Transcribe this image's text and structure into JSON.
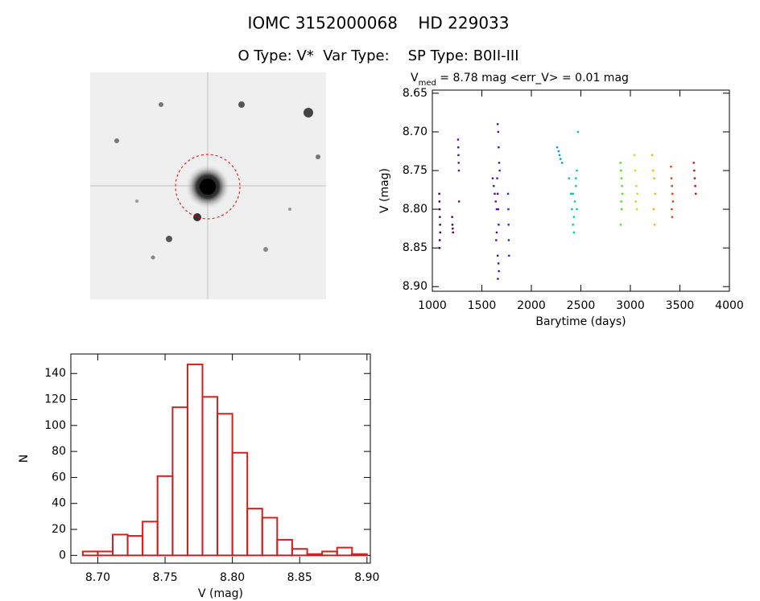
{
  "header": {
    "title": "IOMC 3152000068    HD 229033",
    "subtitle": "O Type: V*  Var Type:    SP Type: B0II-III"
  },
  "chart_data": [
    {
      "type": "scatter",
      "title_main": "V",
      "title_sub": "med",
      "title_rest": " = 8.78 mag <err_V> = 0.01 mag",
      "x_label": "Barytime (days)",
      "y_label": "V (mag)",
      "xlim": [
        1000,
        4000
      ],
      "xticks": [
        1000,
        1500,
        2000,
        2500,
        3000,
        3500,
        4000
      ],
      "ylim": [
        8.646,
        8.906
      ],
      "y_inverted": true,
      "yticks": [
        {
          "value": 8.65,
          "label": "8.65"
        },
        {
          "value": 8.7,
          "label": "8.70"
        },
        {
          "value": 8.75,
          "label": "8.75"
        },
        {
          "value": 8.8,
          "label": "8.80"
        },
        {
          "value": 8.85,
          "label": "8.85"
        },
        {
          "value": 8.9,
          "label": "8.90"
        }
      ],
      "series": [
        {
          "color": "#3a0050",
          "x": [
            1070,
            1072,
            1074,
            1076,
            1078,
            1080,
            1075,
            1073
          ],
          "values": [
            8.78,
            8.79,
            8.8,
            8.81,
            8.82,
            8.83,
            8.84,
            8.85
          ]
        },
        {
          "color": "#4b0070",
          "x": [
            1200,
            1203,
            1206,
            1209
          ],
          "values": [
            8.81,
            8.82,
            8.825,
            8.83
          ]
        },
        {
          "color": "#5a1090",
          "x": [
            1260,
            1262,
            1264,
            1266,
            1268,
            1270
          ],
          "values": [
            8.71,
            8.72,
            8.73,
            8.74,
            8.75,
            8.79
          ]
        },
        {
          "color": "#4a10a0",
          "x": [
            1610,
            1620,
            1630,
            1640,
            1650,
            1655,
            1660,
            1665,
            1670,
            1675,
            1680,
            1660,
            1665,
            1670,
            1650,
            1645,
            1660,
            1668,
            1672,
            1662
          ],
          "values": [
            8.76,
            8.77,
            8.78,
            8.79,
            8.8,
            8.76,
            8.69,
            8.7,
            8.72,
            8.74,
            8.75,
            8.78,
            8.8,
            8.82,
            8.83,
            8.84,
            8.86,
            8.87,
            8.88,
            8.89
          ]
        },
        {
          "color": "#2030c0",
          "x": [
            1765,
            1768,
            1770,
            1772,
            1775
          ],
          "values": [
            8.78,
            8.8,
            8.82,
            8.84,
            8.86
          ]
        },
        {
          "color": "#00a0e0",
          "x": [
            2260,
            2275,
            2285,
            2295,
            2310
          ],
          "values": [
            8.72,
            8.725,
            8.73,
            8.735,
            8.74
          ]
        },
        {
          "color": "#00c8a0",
          "x": [
            2380,
            2400,
            2410,
            2420,
            2430,
            2440,
            2450,
            2460,
            2470,
            2430,
            2420,
            2450,
            2460
          ],
          "values": [
            8.76,
            8.78,
            8.8,
            8.82,
            8.83,
            8.79,
            8.77,
            8.75,
            8.7,
            8.81,
            8.78,
            8.76,
            8.8
          ]
        },
        {
          "color": "#50e020",
          "x": [
            2900,
            2905,
            2910,
            2915,
            2920,
            2908,
            2912,
            2903
          ],
          "values": [
            8.74,
            8.75,
            8.76,
            8.77,
            8.78,
            8.79,
            8.8,
            8.82
          ]
        },
        {
          "color": "#c0e020",
          "x": [
            3040,
            3050,
            3060,
            3070,
            3055,
            3065
          ],
          "values": [
            8.73,
            8.75,
            8.77,
            8.78,
            8.79,
            8.8
          ]
        },
        {
          "color": "#ffb000",
          "x": [
            3220,
            3230,
            3240,
            3250,
            3235,
            3245
          ],
          "values": [
            8.73,
            8.75,
            8.76,
            8.78,
            8.8,
            8.82
          ]
        },
        {
          "color": "#e04000",
          "x": [
            3410,
            3415,
            3420,
            3425,
            3430,
            3418,
            3422
          ],
          "values": [
            8.745,
            8.76,
            8.77,
            8.78,
            8.79,
            8.8,
            8.81
          ]
        },
        {
          "color": "#c01010",
          "x": [
            3640,
            3645,
            3650,
            3655,
            3660
          ],
          "values": [
            8.74,
            8.75,
            8.76,
            8.77,
            8.78
          ]
        }
      ]
    },
    {
      "type": "histogram",
      "x_label": "V (mag)",
      "y_label": "N",
      "color": "#d02020",
      "bins": [
        8.6889,
        8.7,
        8.7111,
        8.7222,
        8.7333,
        8.7444,
        8.7556,
        8.7667,
        8.7778,
        8.7889,
        8.8,
        8.8111,
        8.8222,
        8.8333,
        8.8444,
        8.8556,
        8.8667,
        8.8778,
        8.8889,
        8.9
      ],
      "values": [
        3,
        3,
        16,
        15,
        26,
        61,
        114,
        147,
        122,
        109,
        79,
        36,
        29,
        12,
        5,
        1,
        3,
        6,
        1
      ],
      "xlim": [
        8.68,
        8.9025
      ],
      "ylim": [
        -6,
        155
      ],
      "xticks": [
        {
          "value": 8.7,
          "label": "8.70"
        },
        {
          "value": 8.75,
          "label": "8.75"
        },
        {
          "value": 8.8,
          "label": "8.80"
        },
        {
          "value": 8.85,
          "label": "8.85"
        },
        {
          "value": 8.9,
          "label": "8.90"
        }
      ],
      "yticks": [
        0,
        20,
        40,
        60,
        80,
        100,
        120,
        140
      ]
    }
  ]
}
